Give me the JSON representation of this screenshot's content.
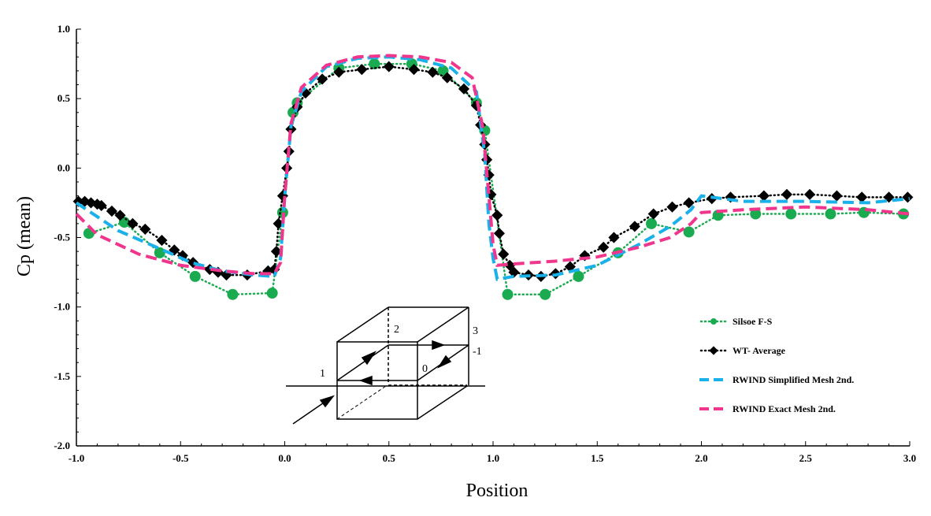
{
  "chart_data": {
    "type": "line",
    "title": "",
    "xlabel": "Position",
    "ylabel": "Cp (mean)",
    "xlim": [
      -1.0,
      3.0
    ],
    "ylim": [
      -2.0,
      1.0
    ],
    "xticks": [
      "-1.0",
      "-0.5",
      "0.0",
      "0.5",
      "1.0",
      "1.5",
      "2.0",
      "2.5",
      "3.0"
    ],
    "yticks": [
      "1.0",
      "0.5",
      "0.0",
      "-0.5",
      "-1.0",
      "-1.5",
      "-2.0"
    ],
    "grid": false,
    "legend_placement": "bottom-right",
    "series": [
      {
        "name": "Silsoe F-S",
        "color": "#1aaa50",
        "style": "dotted",
        "marker": "circle",
        "x": [
          -0.94,
          -0.77,
          -0.6,
          -0.43,
          -0.25,
          -0.06,
          -0.01,
          0.04,
          0.06,
          0.26,
          0.43,
          0.61,
          0.76,
          0.92,
          0.96,
          1.07,
          1.25,
          1.41,
          1.6,
          1.76,
          1.94,
          2.08,
          2.26,
          2.43,
          2.62,
          2.78,
          2.97
        ],
        "y": [
          -0.47,
          -0.39,
          -0.61,
          -0.78,
          -0.91,
          -0.9,
          -0.32,
          0.4,
          0.47,
          0.72,
          0.75,
          0.75,
          0.7,
          0.47,
          0.27,
          -0.91,
          -0.91,
          -0.78,
          -0.61,
          -0.4,
          -0.46,
          -0.34,
          -0.33,
          -0.33,
          -0.33,
          -0.32,
          -0.33
        ]
      },
      {
        "name": "WT- Average",
        "color": "#000000",
        "style": "dotted",
        "marker": "diamond",
        "x": [
          -0.99,
          -0.96,
          -0.93,
          -0.9,
          -0.88,
          -0.83,
          -0.79,
          -0.73,
          -0.67,
          -0.59,
          -0.53,
          -0.49,
          -0.44,
          -0.36,
          -0.32,
          -0.28,
          -0.18,
          -0.08,
          -0.05,
          -0.04,
          -0.03,
          -0.01,
          0.01,
          0.02,
          0.03,
          0.06,
          0.1,
          0.18,
          0.26,
          0.37,
          0.5,
          0.62,
          0.71,
          0.78,
          0.86,
          0.92,
          0.94,
          0.96,
          0.97,
          0.98,
          0.99,
          1.02,
          1.03,
          1.05,
          1.08,
          1.1,
          1.17,
          1.23,
          1.3,
          1.37,
          1.44,
          1.53,
          1.58,
          1.68,
          1.77,
          1.86,
          1.94,
          2.05,
          2.14,
          2.3,
          2.41,
          2.52,
          2.65,
          2.77,
          2.9,
          2.99
        ],
        "y": [
          -0.24,
          -0.24,
          -0.25,
          -0.26,
          -0.27,
          -0.31,
          -0.34,
          -0.4,
          -0.44,
          -0.52,
          -0.59,
          -0.63,
          -0.68,
          -0.73,
          -0.75,
          -0.77,
          -0.77,
          -0.74,
          -0.73,
          -0.6,
          -0.4,
          -0.2,
          0.0,
          0.12,
          0.28,
          0.44,
          0.54,
          0.64,
          0.69,
          0.71,
          0.73,
          0.71,
          0.69,
          0.65,
          0.57,
          0.45,
          0.31,
          0.17,
          0.06,
          -0.05,
          -0.19,
          -0.34,
          -0.47,
          -0.62,
          -0.7,
          -0.75,
          -0.77,
          -0.78,
          -0.76,
          -0.71,
          -0.63,
          -0.57,
          -0.5,
          -0.42,
          -0.33,
          -0.28,
          -0.25,
          -0.22,
          -0.21,
          -0.2,
          -0.19,
          -0.19,
          -0.2,
          -0.21,
          -0.21,
          -0.21
        ]
      },
      {
        "name": "RWIND Simplified Mesh 2nd.",
        "color": "#1ab0ea",
        "style": "dashed",
        "marker": "none",
        "x": [
          -1.0,
          -0.8,
          -0.6,
          -0.45,
          -0.3,
          -0.15,
          -0.05,
          -0.02,
          0.0,
          0.03,
          0.08,
          0.2,
          0.35,
          0.5,
          0.65,
          0.8,
          0.92,
          0.96,
          0.98,
          1.0,
          1.02,
          1.1,
          1.3,
          1.5,
          1.7,
          1.85,
          1.95,
          2.0,
          2.2,
          2.5,
          2.8,
          3.0
        ],
        "y": [
          -0.25,
          -0.45,
          -0.58,
          -0.68,
          -0.74,
          -0.77,
          -0.78,
          -0.65,
          -0.2,
          0.3,
          0.55,
          0.73,
          0.79,
          0.8,
          0.78,
          0.72,
          0.55,
          0.1,
          -0.4,
          -0.65,
          -0.8,
          -0.78,
          -0.77,
          -0.7,
          -0.55,
          -0.42,
          -0.3,
          -0.2,
          -0.24,
          -0.24,
          -0.25,
          -0.22
        ]
      },
      {
        "name": "RWIND Exact Mesh 2nd.",
        "color": "#f0358c",
        "style": "dashed",
        "marker": "none",
        "x": [
          -1.0,
          -0.9,
          -0.7,
          -0.5,
          -0.3,
          -0.15,
          -0.05,
          -0.02,
          0.0,
          0.03,
          0.08,
          0.2,
          0.35,
          0.5,
          0.65,
          0.8,
          0.9,
          0.95,
          0.98,
          1.0,
          1.02,
          1.1,
          1.3,
          1.5,
          1.7,
          1.85,
          1.95,
          2.0,
          2.2,
          2.5,
          2.8,
          3.0
        ],
        "y": [
          -0.33,
          -0.48,
          -0.62,
          -0.7,
          -0.74,
          -0.76,
          -0.76,
          -0.68,
          -0.2,
          0.32,
          0.58,
          0.74,
          0.8,
          0.81,
          0.8,
          0.76,
          0.65,
          0.3,
          -0.2,
          -0.55,
          -0.7,
          -0.69,
          -0.67,
          -0.64,
          -0.57,
          -0.5,
          -0.4,
          -0.32,
          -0.3,
          -0.28,
          -0.3,
          -0.33
        ]
      }
    ],
    "annotations": [
      "1",
      "2",
      "3",
      "-1",
      "0"
    ]
  }
}
